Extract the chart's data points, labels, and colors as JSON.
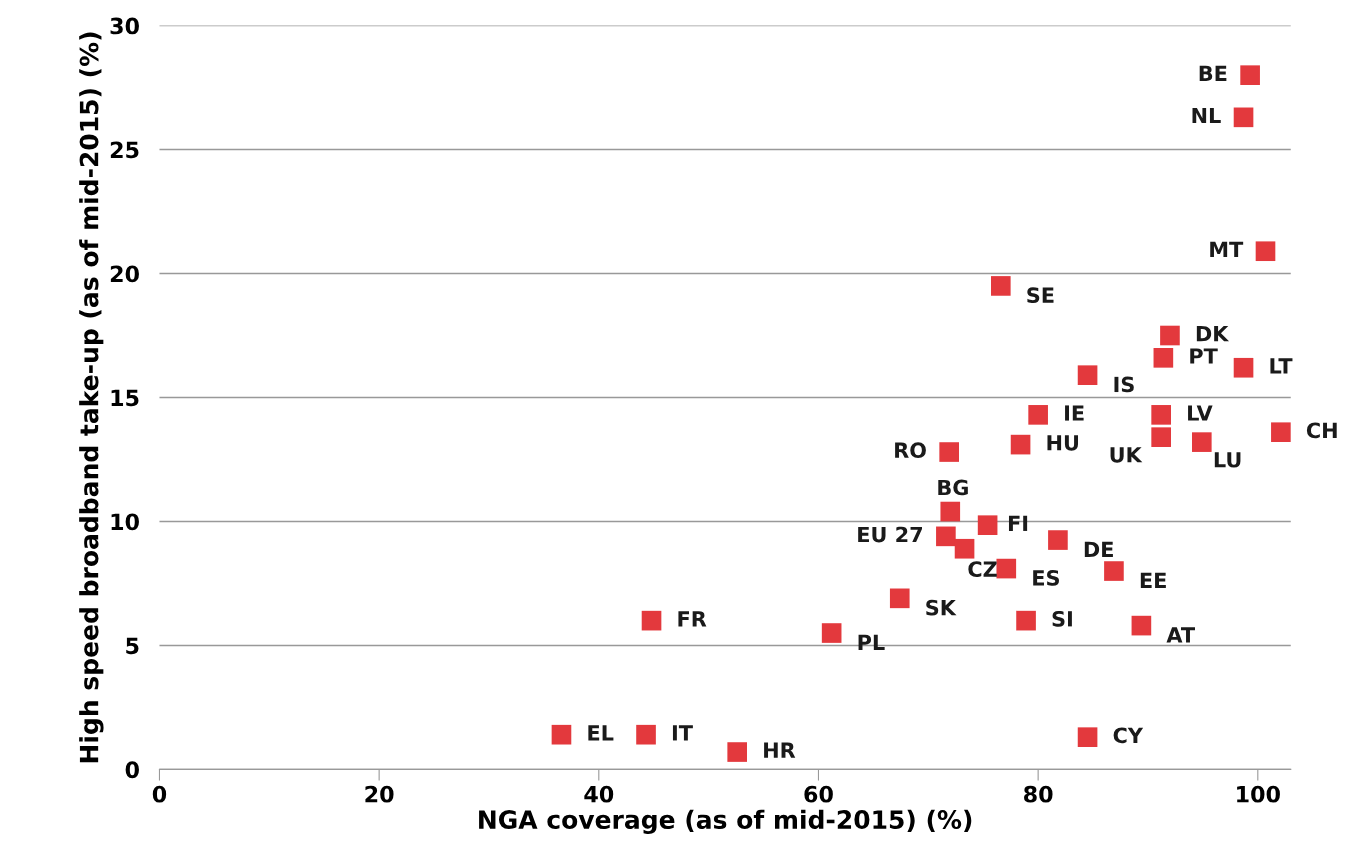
{
  "chart_data": {
    "type": "scatter",
    "xlabel": "NGA coverage (as of mid-2015) (%)",
    "ylabel": "High speed broadband take-up (as of mid-2015) (%)",
    "xlim": [
      0,
      103
    ],
    "xticks": [
      0,
      20,
      40,
      60,
      80,
      100
    ],
    "ylim": [
      0,
      30
    ],
    "yticks": [
      0,
      5,
      10,
      15,
      20,
      25,
      30
    ],
    "grid": "y",
    "marker": "square",
    "series": [
      {
        "color": "#e3393d",
        "x": [
          99.3,
          98.7,
          100.7,
          76.6,
          92.0,
          91.4,
          98.7,
          84.5,
          80.0,
          91.2,
          102.1,
          78.4,
          91.2,
          94.9,
          71.9,
          72.0,
          75.4,
          71.6,
          73.3,
          81.8,
          77.1,
          86.9,
          67.4,
          44.8,
          61.2,
          78.9,
          89.4,
          36.6,
          44.3,
          52.6,
          84.5
        ],
        "values": [
          28.0,
          26.3,
          20.9,
          19.5,
          17.5,
          16.6,
          16.2,
          15.9,
          14.3,
          14.3,
          13.6,
          13.1,
          13.4,
          13.2,
          12.8,
          10.4,
          9.85,
          9.4,
          8.9,
          9.25,
          8.1,
          8.0,
          6.9,
          6.0,
          5.5,
          6.0,
          5.8,
          1.4,
          1.4,
          0.7,
          1.3
        ]
      }
    ],
    "annotations": [
      {
        "text": "BE",
        "x": 99.3,
        "y": 28.0
      },
      {
        "text": "NL",
        "x": 98.7,
        "y": 26.3
      },
      {
        "text": "MT",
        "x": 100.7,
        "y": 20.9
      },
      {
        "text": "SE",
        "x": 76.6,
        "y": 19.5
      },
      {
        "text": "DK",
        "x": 92.0,
        "y": 17.5
      },
      {
        "text": "PT",
        "x": 91.4,
        "y": 16.6
      },
      {
        "text": "LT",
        "x": 98.7,
        "y": 16.2
      },
      {
        "text": "IS",
        "x": 84.5,
        "y": 15.9
      },
      {
        "text": "IE",
        "x": 80.0,
        "y": 14.3
      },
      {
        "text": "LV",
        "x": 91.2,
        "y": 14.3
      },
      {
        "text": "CH",
        "x": 102.1,
        "y": 13.6
      },
      {
        "text": "HU",
        "x": 78.4,
        "y": 13.1
      },
      {
        "text": "UK",
        "x": 91.2,
        "y": 13.4
      },
      {
        "text": "LU",
        "x": 94.9,
        "y": 13.2
      },
      {
        "text": "RO",
        "x": 71.9,
        "y": 12.8
      },
      {
        "text": "BG",
        "x": 72.0,
        "y": 10.4
      },
      {
        "text": "FI",
        "x": 75.4,
        "y": 9.85
      },
      {
        "text": "EU 27",
        "x": 71.6,
        "y": 9.4
      },
      {
        "text": "CZ",
        "x": 73.3,
        "y": 8.9
      },
      {
        "text": "DE",
        "x": 81.8,
        "y": 9.25
      },
      {
        "text": "ES",
        "x": 77.1,
        "y": 8.1
      },
      {
        "text": "EE",
        "x": 86.9,
        "y": 8.0
      },
      {
        "text": "SK",
        "x": 67.4,
        "y": 6.9
      },
      {
        "text": "FR",
        "x": 44.8,
        "y": 6.0
      },
      {
        "text": "PL",
        "x": 61.2,
        "y": 5.5
      },
      {
        "text": "SI",
        "x": 78.9,
        "y": 6.0
      },
      {
        "text": "AT",
        "x": 89.4,
        "y": 5.8
      },
      {
        "text": "EL",
        "x": 36.6,
        "y": 1.4
      },
      {
        "text": "IT",
        "x": 44.3,
        "y": 1.4
      },
      {
        "text": "HR",
        "x": 52.6,
        "y": 0.7
      },
      {
        "text": "CY",
        "x": 84.5,
        "y": 1.3
      }
    ]
  }
}
